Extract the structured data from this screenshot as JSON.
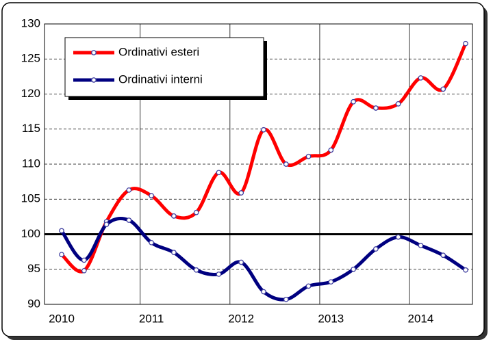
{
  "chart_data": {
    "type": "line",
    "categories": [
      "2010",
      null,
      null,
      null,
      "2011",
      null,
      null,
      null,
      "2012",
      null,
      null,
      null,
      "2013",
      null,
      null,
      null,
      "2014",
      null,
      null
    ],
    "series": [
      {
        "name": "Ordinativi esteri",
        "color": "#ff0000",
        "values": [
          97.1,
          94.8,
          101.8,
          106.3,
          105.5,
          102.6,
          103.1,
          108.8,
          105.9,
          114.9,
          110.0,
          111.1,
          112.0,
          118.9,
          118.0,
          118.6,
          122.3,
          120.7,
          127.2
        ]
      },
      {
        "name": "Ordinativi interni",
        "color": "#000080",
        "values": [
          100.5,
          96.3,
          101.4,
          102.0,
          98.8,
          97.4,
          94.9,
          94.3,
          96.0,
          91.8,
          90.7,
          92.6,
          93.2,
          95.0,
          97.9,
          99.6,
          98.4,
          97.0,
          94.9
        ]
      }
    ],
    "ylim": [
      90,
      130
    ],
    "yticks": [
      90,
      95,
      100,
      105,
      110,
      115,
      120,
      125,
      130
    ],
    "reference_line": 100,
    "grid": true,
    "legend": "upper-left"
  }
}
